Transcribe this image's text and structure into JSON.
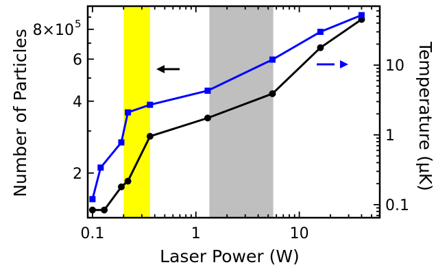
{
  "chart_data": {
    "type": "line",
    "xlabel": "Laser Power (W)",
    "ylabel": "Number of Particles",
    "y2label": "Temperature (µK)",
    "x_scale": "log",
    "y_scale": "log",
    "y2_scale": "log",
    "xlim": [
      0.09,
      60
    ],
    "ylim": [
      130000,
      1000000
    ],
    "y2lim": [
      0.065,
      70
    ],
    "x_ticks": [
      {
        "value": 0.1,
        "label": "0.1"
      },
      {
        "value": 1,
        "label": "1"
      },
      {
        "value": 10,
        "label": "10"
      }
    ],
    "y_ticks": [
      {
        "value": 200000,
        "label": "2"
      },
      {
        "value": 400000,
        "label": "4"
      },
      {
        "value": 600000,
        "label": "6"
      },
      {
        "value": 800000,
        "label": "8×10"
      }
    ],
    "y_tick_exponent": "5",
    "y2_ticks": [
      {
        "value": 0.1,
        "label": "0.1"
      },
      {
        "value": 1,
        "label": "1"
      },
      {
        "value": 10,
        "label": "10"
      }
    ],
    "bands": [
      {
        "x": [
          0.2,
          0.36
        ],
        "color": "#ffff00"
      },
      {
        "x": [
          1.35,
          5.6
        ],
        "color": "#bfbfbf"
      }
    ],
    "series": [
      {
        "axis": "left",
        "color": "#000000",
        "marker": "circle",
        "x": [
          0.1,
          0.13,
          0.19,
          0.22,
          0.36,
          1.3,
          5.5,
          16,
          40
        ],
        "y": [
          140000,
          140000,
          175000,
          185000,
          285000,
          340000,
          430000,
          670000,
          880000
        ]
      },
      {
        "axis": "right",
        "color": "#0000ff",
        "marker": "square",
        "x": [
          0.1,
          0.12,
          0.19,
          0.22,
          0.36,
          1.3,
          5.5,
          16,
          40
        ],
        "y2": [
          0.12,
          0.34,
          0.78,
          2.1,
          2.7,
          4.3,
          12,
          30,
          52
        ]
      }
    ],
    "arrows": [
      {
        "direction": "left",
        "color": "#000000"
      },
      {
        "direction": "right",
        "color": "#0000ff"
      }
    ],
    "grid": false,
    "legend": "none"
  }
}
